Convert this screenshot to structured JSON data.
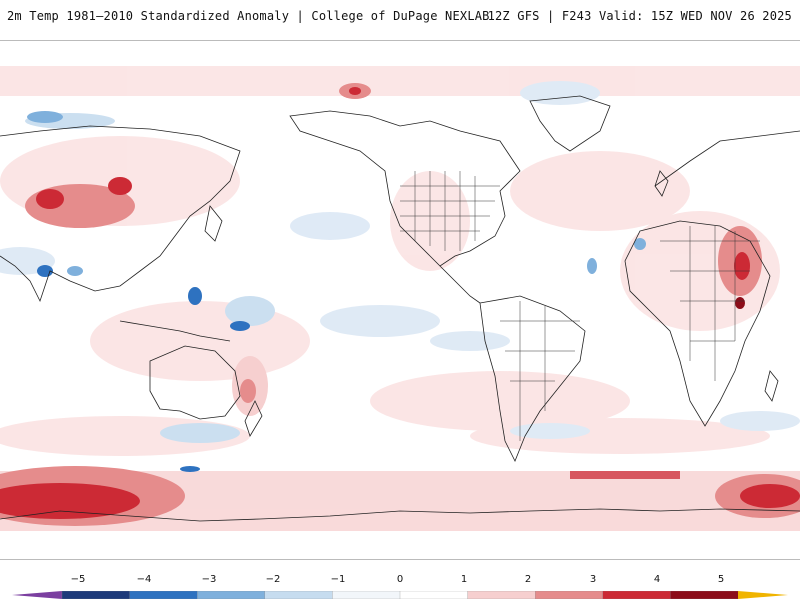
{
  "header": {
    "title": "2m Temp 1981–2010 Standardized Anomaly | College of DuPage NEXLAB",
    "run_info": "12Z GFS | F243 Valid: 15Z WED NOV 26 2025"
  },
  "map": {
    "projection": "equirectangular",
    "variable": "2m temperature standardized anomaly"
  },
  "legend": {
    "ticks": [
      "−5",
      "−4",
      "−3",
      "−2",
      "−1",
      "0",
      "1",
      "2",
      "3",
      "4",
      "5"
    ],
    "colors": [
      "#7b3fa0",
      "#1d3a7a",
      "#2e72c0",
      "#7fb0dc",
      "#c6dcef",
      "#f2f6fa",
      "#ffffff",
      "#f6cfcf",
      "#e58c8c",
      "#cc2a35",
      "#8c0d1a",
      "#f0b400"
    ]
  }
}
